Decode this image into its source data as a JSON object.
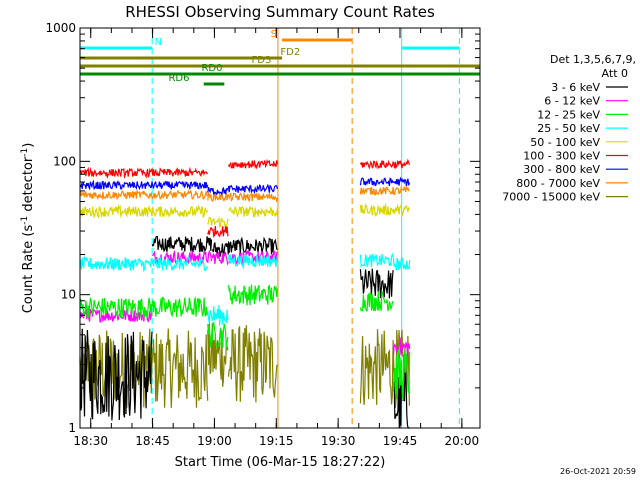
{
  "chart_data": {
    "type": "line",
    "title": "RHESSI Observing Summary Count Rates",
    "xlabel": "Start Time (06-Mar-15 18:27:22)",
    "ylabel_main": "Count Rate (s",
    "ylabel_sup1": "-1",
    "ylabel_mid": " detector",
    "ylabel_sup2": "-1",
    "ylabel_end": ")",
    "yscale": "log",
    "ylim": [
      1,
      1000
    ],
    "xlim_minutes": [
      0,
      97
    ],
    "yticks": [
      {
        "value": 1,
        "label": "1"
      },
      {
        "value": 10,
        "label": "10"
      },
      {
        "value": 100,
        "label": "100"
      },
      {
        "value": 1000,
        "label": "1000"
      }
    ],
    "xticks": [
      {
        "min": 2.6,
        "label": "18:30"
      },
      {
        "min": 17.6,
        "label": "18:45"
      },
      {
        "min": 32.6,
        "label": "19:00"
      },
      {
        "min": 47.6,
        "label": "19:15"
      },
      {
        "min": 62.6,
        "label": "19:30"
      },
      {
        "min": 77.6,
        "label": "19:45"
      },
      {
        "min": 92.6,
        "label": "20:00"
      }
    ],
    "legend": {
      "header1": "Det 1,3,5,6,7,9,",
      "header2": "Att 0",
      "position": "right"
    },
    "series": [
      {
        "name": "3 - 6 keV",
        "color": "#000000",
        "segments": [
          {
            "x": [
              0,
              17.5
            ],
            "y": 2.5,
            "jit": 0.35
          },
          {
            "x": [
              17.5,
              32
            ],
            "y": 24,
            "jit": 0.06
          },
          {
            "x": [
              32,
              36
            ],
            "y": 22,
            "jit": 0.06
          },
          {
            "x": [
              36,
              48
            ],
            "y": 23,
            "jit": 0.06
          },
          {
            "x": [
              68,
              76
            ],
            "y": 12,
            "jit": 0.12
          },
          {
            "x": [
              76,
              80
            ],
            "y": 1.5,
            "jit": 0.3
          }
        ]
      },
      {
        "name": "6 - 12 keV",
        "color": "#ff00ff",
        "segments": [
          {
            "x": [
              0,
              17.5
            ],
            "y": 7,
            "jit": 0.05
          },
          {
            "x": [
              17.5,
              32
            ],
            "y": 19,
            "jit": 0.05
          },
          {
            "x": [
              32,
              36
            ],
            "y": 19,
            "jit": 0.05
          },
          {
            "x": [
              36,
              48
            ],
            "y": 19,
            "jit": 0.05
          },
          {
            "x": [
              76,
              80
            ],
            "y": 4,
            "jit": 0.08
          }
        ]
      },
      {
        "name": "12 - 25 keV",
        "color": "#00ee00",
        "segments": [
          {
            "x": [
              0,
              17.5
            ],
            "y": 8,
            "jit": 0.08
          },
          {
            "x": [
              17.5,
              31
            ],
            "y": 8,
            "jit": 0.08
          },
          {
            "x": [
              31,
              36
            ],
            "y": 5,
            "jit": 0.1
          },
          {
            "x": [
              36,
              48
            ],
            "y": 10,
            "jit": 0.08
          },
          {
            "x": [
              68,
              76
            ],
            "y": 9,
            "jit": 0.08
          },
          {
            "x": [
              76,
              80
            ],
            "y": 2.5,
            "jit": 0.2
          }
        ]
      },
      {
        "name": "25 - 50 keV",
        "color": "#00ffff",
        "segments": [
          {
            "x": [
              0,
              17.5
            ],
            "y": 17,
            "jit": 0.05
          },
          {
            "x": [
              17.5,
              31
            ],
            "y": 17,
            "jit": 0.05
          },
          {
            "x": [
              31,
              36
            ],
            "y": 7,
            "jit": 0.08
          },
          {
            "x": [
              36,
              48
            ],
            "y": 18,
            "jit": 0.05
          },
          {
            "x": [
              68,
              76
            ],
            "y": 18,
            "jit": 0.05
          },
          {
            "x": [
              76,
              80
            ],
            "y": 17,
            "jit": 0.05
          }
        ]
      },
      {
        "name": "50 - 100 keV",
        "color": "#d8d800",
        "segments": [
          {
            "x": [
              0,
              31
            ],
            "y": 42,
            "jit": 0.04
          },
          {
            "x": [
              31,
              36
            ],
            "y": 35,
            "jit": 0.04
          },
          {
            "x": [
              36,
              48
            ],
            "y": 42,
            "jit": 0.04
          },
          {
            "x": [
              68,
              80
            ],
            "y": 43,
            "jit": 0.04
          }
        ]
      },
      {
        "name": "100 - 300 keV",
        "color": "#ff0000",
        "segments": [
          {
            "x": [
              0,
              31
            ],
            "y": 82,
            "jit": 0.03
          },
          {
            "x": [
              31,
              36
            ],
            "y": 30,
            "jit": 0.04
          },
          {
            "x": [
              36,
              48
            ],
            "y": 95,
            "jit": 0.03
          },
          {
            "x": [
              68,
              80
            ],
            "y": 95,
            "jit": 0.03
          }
        ]
      },
      {
        "name": "300 - 800 keV",
        "color": "#0000ff",
        "segments": [
          {
            "x": [
              0,
              31
            ],
            "y": 66,
            "jit": 0.03
          },
          {
            "x": [
              31,
              36
            ],
            "y": 60,
            "jit": 0.03
          },
          {
            "x": [
              36,
              48
            ],
            "y": 62,
            "jit": 0.03
          },
          {
            "x": [
              68,
              80
            ],
            "y": 70,
            "jit": 0.03
          }
        ]
      },
      {
        "name": "800 - 7000 keV",
        "color": "#ff8800",
        "segments": [
          {
            "x": [
              0,
              31
            ],
            "y": 56,
            "jit": 0.03
          },
          {
            "x": [
              31,
              36
            ],
            "y": 54,
            "jit": 0.03
          },
          {
            "x": [
              36,
              48
            ],
            "y": 54,
            "jit": 0.03
          },
          {
            "x": [
              68,
              80
            ],
            "y": 60,
            "jit": 0.03
          }
        ]
      },
      {
        "name": "7000 - 15000 keV",
        "color": "#808000",
        "segments": [
          {
            "x": [
              0,
              31
            ],
            "y": 2.8,
            "jit": 0.3
          },
          {
            "x": [
              31,
              36
            ],
            "y": 3.5,
            "jit": 0.25
          },
          {
            "x": [
              36,
              48
            ],
            "y": 3.0,
            "jit": 0.3
          },
          {
            "x": [
              68,
              80
            ],
            "y": 2.8,
            "jit": 0.3
          }
        ]
      }
    ],
    "flag_bars": [
      {
        "label": "N",
        "color": "#00ffff",
        "level": 1,
        "ranges": [
          [
            0,
            17.5
          ],
          [
            78,
            92
          ]
        ],
        "label_at": 19
      },
      {
        "label": "S",
        "color": "#ff8800",
        "level": 2,
        "ranges": [
          [
            49,
            66
          ]
        ],
        "label_at": 47
      },
      {
        "label": "FD2",
        "color": "#808000",
        "level": 3,
        "ranges": [
          [
            0,
            49
          ]
        ],
        "label_at": 51
      },
      {
        "label": "FD3",
        "color": "#808000",
        "level": 4,
        "ranges": [
          [
            0,
            97
          ]
        ],
        "label_at": 44
      },
      {
        "label": "RD0",
        "color": "#008800",
        "level": 5,
        "ranges": [
          [
            0,
            97
          ]
        ],
        "label_at": 32
      },
      {
        "label": "RD6",
        "color": "#008800",
        "level": 6,
        "ranges": [
          [
            30,
            35
          ]
        ],
        "label_at": 24
      }
    ],
    "vlines": [
      {
        "min": 0,
        "color": "#00ffff",
        "dash": false
      },
      {
        "min": 17.5,
        "color": "#00ffff",
        "dash": true
      },
      {
        "min": 48,
        "color": "#ff8800",
        "dash": false
      },
      {
        "min": 66,
        "color": "#ff8800",
        "dash": true
      },
      {
        "min": 78,
        "color": "#00ffff",
        "dash": false
      },
      {
        "min": 92,
        "color": "#00ffff",
        "dash": true
      }
    ]
  },
  "footer": {
    "timestamp": "26-Oct-2021 20:59"
  }
}
